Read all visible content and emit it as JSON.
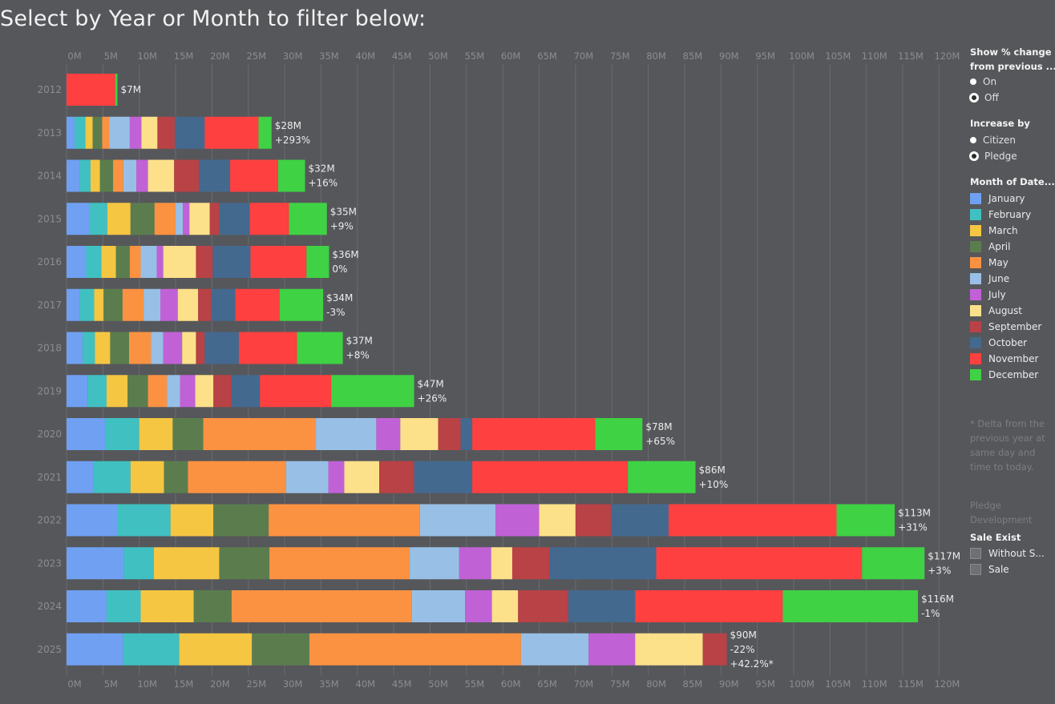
{
  "title": "Select by Year or Month to filter below:",
  "chart_data": {
    "type": "bar",
    "orientation": "horizontal",
    "stacked": true,
    "x_ticks": [
      "0M",
      "5M",
      "10M",
      "15M",
      "20M",
      "25M",
      "30M",
      "35M",
      "40M",
      "45M",
      "50M",
      "55M",
      "60M",
      "65M",
      "70M",
      "75M",
      "80M",
      "85M",
      "90M",
      "95M",
      "100M",
      "105M",
      "110M",
      "115M",
      "120M"
    ],
    "xlim": [
      0,
      122
    ],
    "x_units": "$M",
    "grid": true,
    "legend_placement": "right",
    "categories": [
      "2012",
      "2013",
      "2014",
      "2015",
      "2016",
      "2017",
      "2018",
      "2019",
      "2020",
      "2021",
      "2022",
      "2023",
      "2024",
      "2025"
    ],
    "series": [
      {
        "name": "January",
        "color": "#6fa0f2",
        "values": [
          0,
          1.1,
          1.8,
          3.2,
          2.7,
          1.8,
          2.2,
          2.9,
          5.3,
          3.7,
          7.0,
          7.9,
          5.5,
          7.8
        ]
      },
      {
        "name": "February",
        "color": "#41c0c2",
        "values": [
          0,
          1.5,
          1.5,
          2.4,
          2.1,
          2.0,
          1.7,
          2.6,
          4.7,
          5.1,
          7.3,
          4.1,
          4.7,
          7.7
        ]
      },
      {
        "name": "March",
        "color": "#f5c642",
        "values": [
          0,
          1.0,
          1.3,
          3.2,
          2.0,
          1.3,
          2.1,
          2.9,
          4.6,
          4.6,
          5.9,
          9.0,
          7.3,
          10.0
        ]
      },
      {
        "name": "April",
        "color": "#5b7d4e",
        "values": [
          0,
          1.3,
          1.8,
          3.3,
          1.9,
          2.6,
          2.6,
          2.8,
          4.2,
          3.3,
          7.6,
          6.9,
          5.2,
          7.9
        ]
      },
      {
        "name": "May",
        "color": "#fb9242",
        "values": [
          0,
          1.0,
          1.4,
          2.9,
          1.5,
          2.9,
          3.0,
          2.6,
          15.5,
          13.5,
          20.8,
          19.3,
          24.8,
          29.1
        ]
      },
      {
        "name": "June",
        "color": "#98c0e6",
        "values": [
          0,
          2.8,
          1.8,
          1.0,
          2.2,
          2.3,
          1.7,
          1.8,
          8.3,
          5.8,
          10.4,
          6.8,
          7.3,
          9.3
        ]
      },
      {
        "name": "July",
        "color": "#c062d6",
        "values": [
          0,
          1.6,
          1.6,
          0.9,
          0.9,
          2.4,
          2.6,
          2.1,
          3.3,
          2.2,
          6.0,
          4.4,
          3.7,
          6.4
        ]
      },
      {
        "name": "August",
        "color": "#fde08a",
        "values": [
          0,
          2.2,
          3.6,
          2.8,
          4.5,
          2.8,
          1.9,
          2.5,
          5.2,
          4.8,
          5.0,
          2.9,
          3.6,
          9.3
        ]
      },
      {
        "name": "September",
        "color": "#b84245",
        "values": [
          0,
          2.4,
          3.4,
          1.3,
          2.3,
          1.8,
          1.2,
          2.5,
          3.1,
          4.8,
          4.9,
          5.1,
          6.9,
          3.3
        ]
      },
      {
        "name": "October",
        "color": "#44698f",
        "values": [
          0,
          4.1,
          4.3,
          4.2,
          5.2,
          3.3,
          4.7,
          3.9,
          1.6,
          8.0,
          7.9,
          14.7,
          9.2,
          0
        ]
      },
      {
        "name": "November",
        "color": "#fe4040",
        "values": [
          6.7,
          7.4,
          6.6,
          5.4,
          7.7,
          6.1,
          8.0,
          9.8,
          16.9,
          21.4,
          23.1,
          28.3,
          20.3,
          0
        ]
      },
      {
        "name": "December",
        "color": "#3fd244",
        "values": [
          0.3,
          1.8,
          3.7,
          5.2,
          3.1,
          6.0,
          6.3,
          11.4,
          6.5,
          9.3,
          8.0,
          8.6,
          18.6,
          0
        ]
      }
    ],
    "labels": [
      [
        "$7M"
      ],
      [
        "$28M",
        "+293%"
      ],
      [
        "$32M",
        "+16%"
      ],
      [
        "$35M",
        "+9%"
      ],
      [
        "$36M",
        "0%"
      ],
      [
        "$34M",
        "-3%"
      ],
      [
        "$37M",
        "+8%"
      ],
      [
        "$47M",
        "+26%"
      ],
      [
        "$78M",
        "+65%"
      ],
      [
        "$86M",
        "+10%"
      ],
      [
        "$113M",
        "+31%"
      ],
      [
        "$117M",
        "+3%"
      ],
      [
        "$116M",
        "-1%"
      ],
      [
        "$90M",
        "-22%",
        "+42.2%*"
      ]
    ]
  },
  "legend": {
    "show_change": {
      "title_line1": "Show % change",
      "title_line2": "from previous ...",
      "options": [
        {
          "label": "On",
          "selected": false
        },
        {
          "label": "Off",
          "selected": true
        }
      ]
    },
    "increase_by": {
      "title": "Increase by",
      "options": [
        {
          "label": "Citizen",
          "selected": false
        },
        {
          "label": "Pledge",
          "selected": true
        }
      ]
    },
    "month": {
      "title": "Month of Date..."
    },
    "delta_note": "* Delta from the\nprevious year at\nsame day and\ntime to today.",
    "pledge_note": "Pledge\nDevelopment",
    "sale_exist": {
      "title": "Sale Exist",
      "items": [
        "Without S...",
        "Sale"
      ]
    }
  }
}
